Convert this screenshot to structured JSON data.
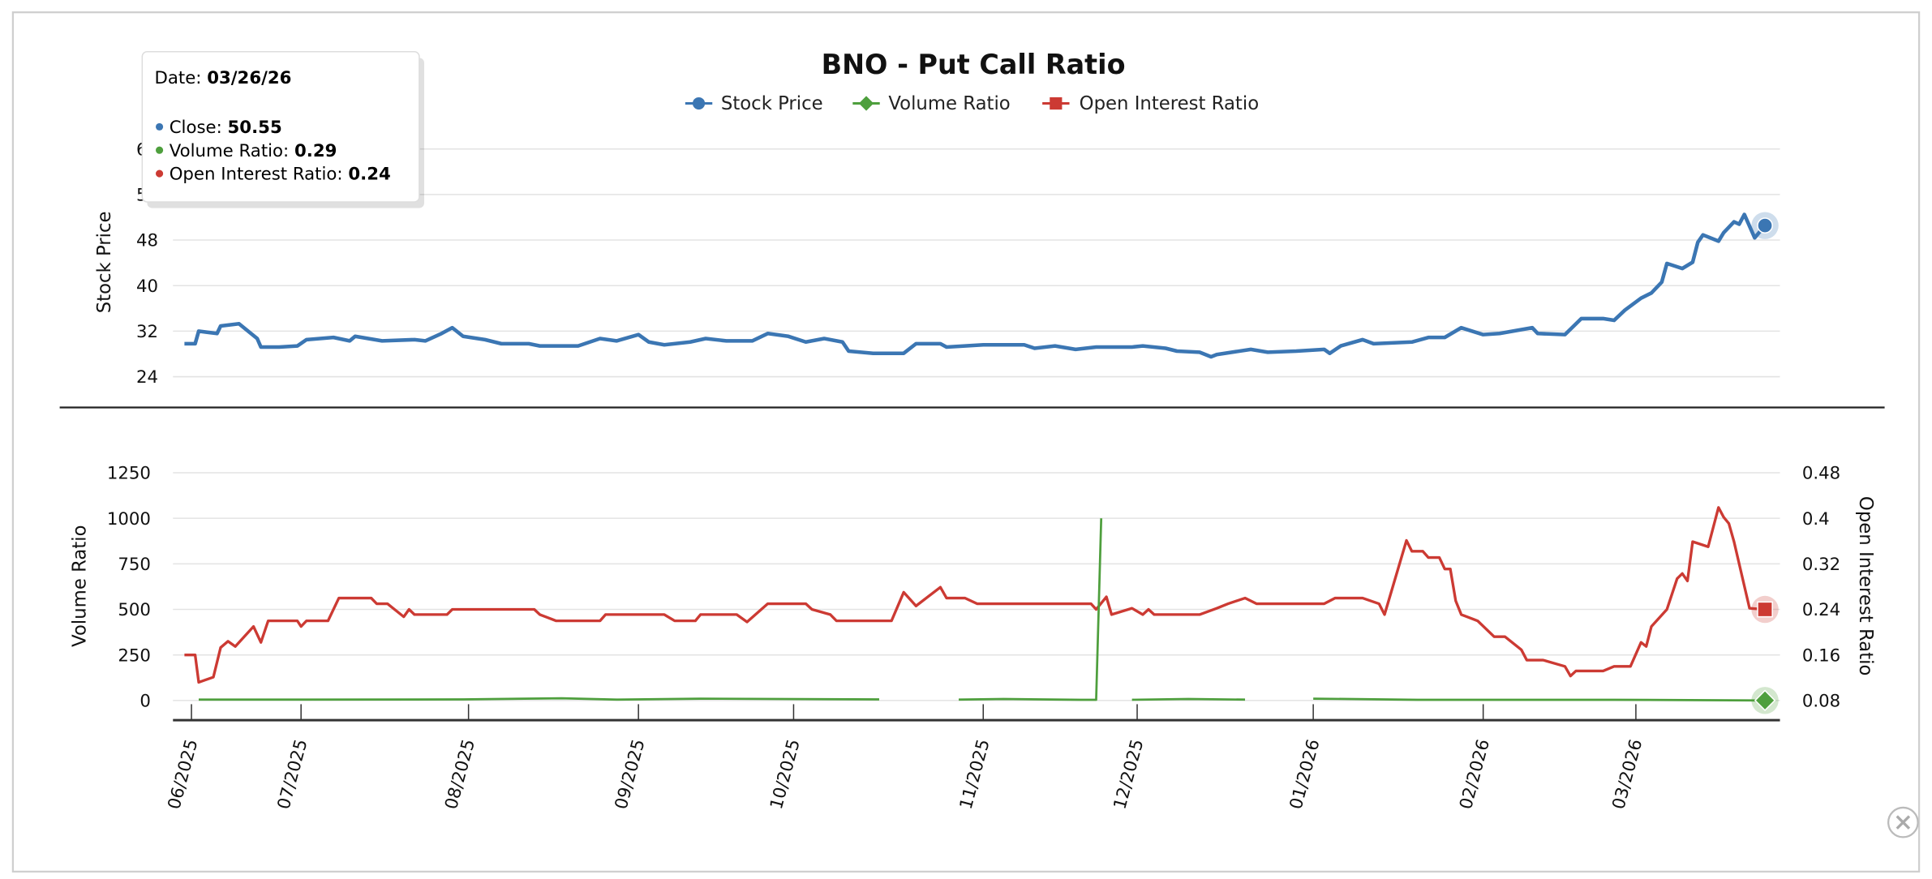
{
  "chart_data": {
    "type": "line",
    "title": "BNO - Put Call Ratio",
    "legend": {
      "placement": "top-center",
      "items": [
        "Stock Price",
        "Volume Ratio",
        "Open Interest Ratio"
      ]
    },
    "colors": {
      "stock": "#3b76b3",
      "volume": "#4e9f3d",
      "oi": "#cc3a33"
    },
    "grid": true,
    "x_ticks": [
      "06/2025",
      "07/2025",
      "08/2025",
      "09/2025",
      "10/2025",
      "11/2025",
      "12/2025",
      "01/2026",
      "02/2026",
      "03/2026"
    ],
    "upper_panel": {
      "ylabel": "Stock Price",
      "ylim": [
        24,
        64
      ],
      "y_ticks": [
        "64",
        "56",
        "48",
        "40",
        "32",
        "24"
      ],
      "series": [
        {
          "name": "Stock Price",
          "marker": "circle",
          "points": [
            [
              "05/30/25",
              29.8
            ],
            [
              "06/02/25",
              29.8
            ],
            [
              "06/03/25",
              32.0
            ],
            [
              "06/08/25",
              31.6
            ],
            [
              "06/09/25",
              32.9
            ],
            [
              "06/14/25",
              33.3
            ],
            [
              "06/19/25",
              30.7
            ],
            [
              "06/20/25",
              29.2
            ],
            [
              "06/25/25",
              29.2
            ],
            [
              "06/30/25",
              29.4
            ],
            [
              "07/02/25",
              30.5
            ],
            [
              "07/07/25",
              30.9
            ],
            [
              "07/10/25",
              30.3
            ],
            [
              "07/11/25",
              31.1
            ],
            [
              "07/16/25",
              30.3
            ],
            [
              "07/22/25",
              30.5
            ],
            [
              "07/24/25",
              30.3
            ],
            [
              "07/27/25",
              31.6
            ],
            [
              "07/29/25",
              32.6
            ],
            [
              "07/31/25",
              31.1
            ],
            [
              "08/04/25",
              30.5
            ],
            [
              "08/07/25",
              29.8
            ],
            [
              "08/12/25",
              29.8
            ],
            [
              "08/14/25",
              29.4
            ],
            [
              "08/21/25",
              29.4
            ],
            [
              "08/25/25",
              30.7
            ],
            [
              "08/28/25",
              30.3
            ],
            [
              "09/01/25",
              31.4
            ],
            [
              "09/03/25",
              30.1
            ],
            [
              "09/06/25",
              29.6
            ],
            [
              "09/11/25",
              30.1
            ],
            [
              "09/14/25",
              30.7
            ],
            [
              "09/18/25",
              30.3
            ],
            [
              "09/23/25",
              30.3
            ],
            [
              "09/26/25",
              31.6
            ],
            [
              "09/30/25",
              31.1
            ],
            [
              "10/03/25",
              30.1
            ],
            [
              "10/06/25",
              30.7
            ],
            [
              "10/09/25",
              30.1
            ],
            [
              "10/10/25",
              28.5
            ],
            [
              "10/14/25",
              28.1
            ],
            [
              "10/19/25",
              28.1
            ],
            [
              "10/21/25",
              29.8
            ],
            [
              "10/25/25",
              29.8
            ],
            [
              "10/26/25",
              29.2
            ],
            [
              "11/01/25",
              29.6
            ],
            [
              "11/09/25",
              29.6
            ],
            [
              "11/11/25",
              29.0
            ],
            [
              "11/15/25",
              29.4
            ],
            [
              "11/19/25",
              28.8
            ],
            [
              "11/23/25",
              29.2
            ],
            [
              "11/30/25",
              29.2
            ],
            [
              "12/02/25",
              29.4
            ],
            [
              "12/06/25",
              29.0
            ],
            [
              "12/08/25",
              28.5
            ],
            [
              "12/12/25",
              28.3
            ],
            [
              "12/14/25",
              27.5
            ],
            [
              "12/15/25",
              27.9
            ],
            [
              "12/21/25",
              28.8
            ],
            [
              "12/24/25",
              28.3
            ],
            [
              "12/29/25",
              28.5
            ],
            [
              "01/03/26",
              28.8
            ],
            [
              "01/04/26",
              28.1
            ],
            [
              "01/06/26",
              29.4
            ],
            [
              "01/10/26",
              30.5
            ],
            [
              "01/12/26",
              29.8
            ],
            [
              "01/19/26",
              30.1
            ],
            [
              "01/22/26",
              30.9
            ],
            [
              "01/25/26",
              30.9
            ],
            [
              "01/28/26",
              32.6
            ],
            [
              "02/01/26",
              31.4
            ],
            [
              "02/04/26",
              31.6
            ],
            [
              "02/10/26",
              32.6
            ],
            [
              "02/11/26",
              31.6
            ],
            [
              "02/16/26",
              31.4
            ],
            [
              "02/19/26",
              34.2
            ],
            [
              "02/23/26",
              34.2
            ],
            [
              "02/25/26",
              33.9
            ],
            [
              "02/27/26",
              35.7
            ],
            [
              "03/02/26",
              37.8
            ],
            [
              "03/04/26",
              38.7
            ],
            [
              "03/06/26",
              40.6
            ],
            [
              "03/07/26",
              43.9
            ],
            [
              "03/10/26",
              43.0
            ],
            [
              "03/12/26",
              44.1
            ],
            [
              "03/13/26",
              47.6
            ],
            [
              "03/14/26",
              48.9
            ],
            [
              "03/17/26",
              47.8
            ],
            [
              "03/18/26",
              49.3
            ],
            [
              "03/20/26",
              51.2
            ],
            [
              "03/21/26",
              50.8
            ],
            [
              "03/22/26",
              52.5
            ],
            [
              "03/24/26",
              48.4
            ],
            [
              "03/26/26",
              50.55
            ]
          ]
        }
      ]
    },
    "lower_panel": {
      "ylabel_left": "Volume Ratio",
      "ylim_left": [
        0,
        1250
      ],
      "y_ticks_left": [
        "1250",
        "1000",
        "750",
        "500",
        "250",
        "0"
      ],
      "ylabel_right": "Open Interest Ratio",
      "ylim_right": [
        0.08,
        0.48
      ],
      "y_ticks_right": [
        "0.48",
        "0.4",
        "0.32",
        "0.24",
        "0.16",
        "0.08"
      ],
      "series": [
        {
          "name": "Volume Ratio",
          "axis": "left",
          "marker": "diamond",
          "points": [
            [
              "06/03/25",
              5
            ],
            [
              "06/30/25",
              5
            ],
            [
              "07/31/25",
              6
            ],
            [
              "08/18/25",
              12
            ],
            [
              "08/28/25",
              5
            ],
            [
              "09/13/25",
              10
            ],
            [
              "10/15/25",
              6
            ],
            [
              "10/22/25",
              null
            ],
            [
              "10/28/25",
              5
            ],
            [
              "11/05/25",
              8
            ],
            [
              "11/20/25",
              4
            ],
            [
              "11/23/25",
              4
            ],
            [
              "11/24/25",
              1000
            ],
            [
              "11/25/25",
              null
            ],
            [
              "11/30/25",
              4
            ],
            [
              "12/10/25",
              8
            ],
            [
              "12/20/25",
              5
            ],
            [
              "12/28/25",
              null
            ],
            [
              "01/01/26",
              10
            ],
            [
              "01/20/26",
              4
            ],
            [
              "02/10/26",
              4
            ],
            [
              "02/25/26",
              4
            ],
            [
              "03/26/26",
              0.29
            ]
          ]
        },
        {
          "name": "Open Interest Ratio",
          "axis": "right",
          "marker": "square",
          "points": [
            [
              "05/30/25",
              0.16
            ],
            [
              "06/02/25",
              0.16
            ],
            [
              "06/03/25",
              0.112
            ],
            [
              "06/07/25",
              0.121
            ],
            [
              "06/09/25",
              0.173
            ],
            [
              "06/11/25",
              0.184
            ],
            [
              "06/13/25",
              0.175
            ],
            [
              "06/18/25",
              0.21
            ],
            [
              "06/20/25",
              0.182
            ],
            [
              "06/22/25",
              0.22
            ],
            [
              "06/30/25",
              0.22
            ],
            [
              "07/01/25",
              0.21
            ],
            [
              "07/02/25",
              0.22
            ],
            [
              "07/06/25",
              0.22
            ],
            [
              "07/08/25",
              0.26
            ],
            [
              "07/14/25",
              0.26
            ],
            [
              "07/15/25",
              0.25
            ],
            [
              "07/17/25",
              0.25
            ],
            [
              "07/20/25",
              0.227
            ],
            [
              "07/21/25",
              0.24
            ],
            [
              "07/22/25",
              0.231
            ],
            [
              "07/28/25",
              0.231
            ],
            [
              "07/29/25",
              0.24
            ],
            [
              "08/13/25",
              0.24
            ],
            [
              "08/14/25",
              0.231
            ],
            [
              "08/17/25",
              0.22
            ],
            [
              "08/25/25",
              0.22
            ],
            [
              "08/26/25",
              0.231
            ],
            [
              "09/06/25",
              0.231
            ],
            [
              "09/08/25",
              0.22
            ],
            [
              "09/12/25",
              0.22
            ],
            [
              "09/13/25",
              0.231
            ],
            [
              "09/20/25",
              0.231
            ],
            [
              "09/22/25",
              0.218
            ],
            [
              "09/26/25",
              0.25
            ],
            [
              "10/03/25",
              0.25
            ],
            [
              "10/04/25",
              0.24
            ],
            [
              "10/07/25",
              0.231
            ],
            [
              "10/08/25",
              0.22
            ],
            [
              "10/17/25",
              0.22
            ],
            [
              "10/19/25",
              0.27
            ],
            [
              "10/21/25",
              0.246
            ],
            [
              "10/25/25",
              0.279
            ],
            [
              "10/26/25",
              0.26
            ],
            [
              "10/29/25",
              0.26
            ],
            [
              "10/31/25",
              0.25
            ],
            [
              "11/22/25",
              0.25
            ],
            [
              "11/23/25",
              0.24
            ],
            [
              "11/25/25",
              0.262
            ],
            [
              "11/26/25",
              0.231
            ],
            [
              "11/30/25",
              0.242
            ],
            [
              "12/02/25",
              0.231
            ],
            [
              "12/03/25",
              0.24
            ],
            [
              "12/04/25",
              0.231
            ],
            [
              "12/12/25",
              0.231
            ],
            [
              "12/15/25",
              0.242
            ],
            [
              "12/17/25",
              0.25
            ],
            [
              "12/20/25",
              0.26
            ],
            [
              "12/22/25",
              0.25
            ],
            [
              "01/03/26",
              0.25
            ],
            [
              "01/05/26",
              0.26
            ],
            [
              "01/10/26",
              0.26
            ],
            [
              "01/13/26",
              0.25
            ],
            [
              "01/14/26",
              0.231
            ],
            [
              "01/18/26",
              0.361
            ],
            [
              "01/19/26",
              0.342
            ],
            [
              "01/21/26",
              0.342
            ],
            [
              "01/22/26",
              0.331
            ],
            [
              "01/24/26",
              0.331
            ],
            [
              "01/25/26",
              0.311
            ],
            [
              "01/26/26",
              0.311
            ],
            [
              "01/27/26",
              0.255
            ],
            [
              "01/28/26",
              0.231
            ],
            [
              "01/31/26",
              0.22
            ],
            [
              "02/03/26",
              0.192
            ],
            [
              "02/05/26",
              0.192
            ],
            [
              "02/08/26",
              0.169
            ],
            [
              "02/09/26",
              0.151
            ],
            [
              "02/12/26",
              0.151
            ],
            [
              "02/16/26",
              0.14
            ],
            [
              "02/17/26",
              0.123
            ],
            [
              "02/18/26",
              0.132
            ],
            [
              "02/23/26",
              0.132
            ],
            [
              "02/25/26",
              0.14
            ],
            [
              "02/28/26",
              0.14
            ],
            [
              "03/02/26",
              0.182
            ],
            [
              "03/03/26",
              0.175
            ],
            [
              "03/04/26",
              0.21
            ],
            [
              "03/07/26",
              0.24
            ],
            [
              "03/09/26",
              0.294
            ],
            [
              "03/10/26",
              0.303
            ],
            [
              "03/11/26",
              0.29
            ],
            [
              "03/12/26",
              0.359
            ],
            [
              "03/15/26",
              0.35
            ],
            [
              "03/17/26",
              0.419
            ],
            [
              "03/18/26",
              0.402
            ],
            [
              "03/19/26",
              0.391
            ],
            [
              "03/20/26",
              0.359
            ],
            [
              "03/23/26",
              0.242
            ],
            [
              "03/26/26",
              0.24
            ]
          ]
        }
      ]
    }
  },
  "tooltip": {
    "date_label": "Date: ",
    "date_value": "03/26/26",
    "rows": [
      {
        "label": "Close: ",
        "value": "50.55",
        "color": "#3b76b3"
      },
      {
        "label": "Volume Ratio: ",
        "value": "0.29",
        "color": "#4e9f3d"
      },
      {
        "label": "Open Interest Ratio: ",
        "value": "0.24",
        "color": "#cc3a33"
      }
    ]
  },
  "close_icon": "close-x-icon"
}
